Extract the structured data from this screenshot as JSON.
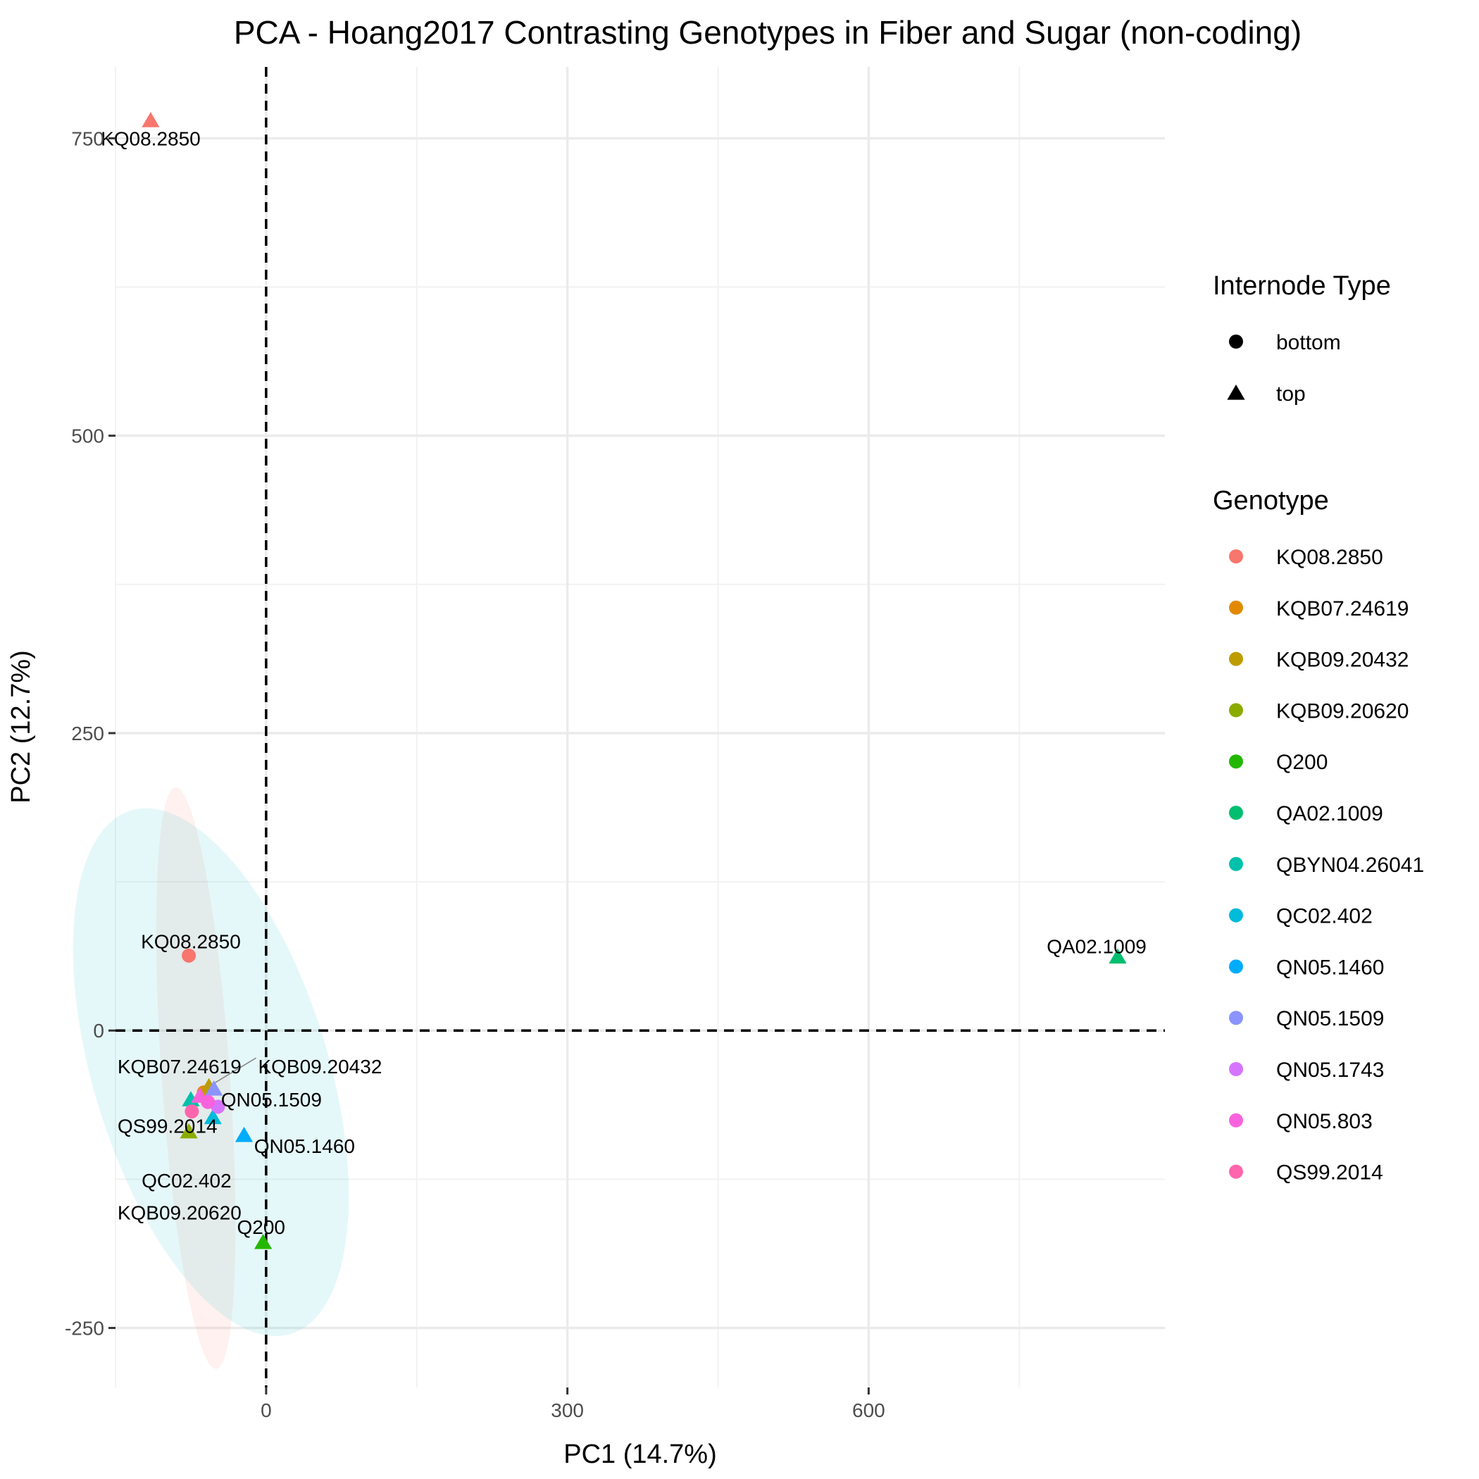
{
  "chart_data": {
    "type": "scatter",
    "title": "PCA - Hoang2017 Contrasting Genotypes in Fiber and Sugar (non-coding)",
    "xlabel": "PC1 (14.7%)",
    "ylabel": "PC2 (12.7%)",
    "xlim": [
      -150,
      895
    ],
    "ylim": [
      -300,
      810
    ],
    "x_ticks": [
      0,
      300,
      600
    ],
    "y_ticks": [
      -250,
      0,
      250,
      500,
      750
    ],
    "x_minor_ticks": [
      -150,
      150,
      450,
      750
    ],
    "y_minor_ticks": [
      -125,
      125,
      375,
      625
    ],
    "reference_lines": {
      "x": 0,
      "y": 0
    },
    "ellipses": [
      {
        "group": "top",
        "center": [
          -70,
          -40
        ],
        "rx": 34,
        "ry": 245,
        "rotation": -4,
        "color": "#F8766D",
        "opacity": 0.1
      },
      {
        "group": "bottom",
        "center": [
          -55,
          -35
        ],
        "rx": 117,
        "ry": 230,
        "rotation": -17,
        "color": "#00BFC4",
        "opacity": 0.1
      }
    ],
    "legend_shape": {
      "title": "Internode Type",
      "entries": [
        {
          "label": "bottom",
          "shape": "circle"
        },
        {
          "label": "top",
          "shape": "triangle"
        }
      ]
    },
    "legend_color": {
      "title": "Genotype",
      "entries": [
        {
          "label": "KQ08.2850",
          "color": "#F8766D"
        },
        {
          "label": "KQB07.24619",
          "color": "#E18A00"
        },
        {
          "label": "KQB09.20432",
          "color": "#BE9C00"
        },
        {
          "label": "KQB09.20620",
          "color": "#8CAB00"
        },
        {
          "label": "Q200",
          "color": "#24B700"
        },
        {
          "label": "QA02.1009",
          "color": "#00BE70"
        },
        {
          "label": "QBYN04.26041",
          "color": "#00C1AB"
        },
        {
          "label": "QC02.402",
          "color": "#00BBDA"
        },
        {
          "label": "QN05.1460",
          "color": "#00ACFC"
        },
        {
          "label": "QN05.1509",
          "color": "#8B93FF"
        },
        {
          "label": "QN05.1743",
          "color": "#D575FE"
        },
        {
          "label": "QN05.803",
          "color": "#F962DD"
        },
        {
          "label": "QS99.2014",
          "color": "#FF65AC"
        }
      ]
    },
    "points": [
      {
        "genotype": "KQ08.2850",
        "type": "top",
        "x": -115,
        "y": 765
      },
      {
        "genotype": "KQ08.2850",
        "type": "bottom",
        "x": -77,
        "y": 63
      },
      {
        "genotype": "QA02.1009",
        "type": "top",
        "x": 848,
        "y": 62
      },
      {
        "genotype": "Q200",
        "type": "top",
        "x": -3,
        "y": -178
      },
      {
        "genotype": "QN05.1460",
        "type": "top",
        "x": -22,
        "y": -88
      },
      {
        "genotype": "KQB09.20620",
        "type": "top",
        "x": -77,
        "y": -85
      },
      {
        "genotype": "QBYN04.26041",
        "type": "top",
        "x": -75,
        "y": -58
      },
      {
        "genotype": "QC02.402",
        "type": "top",
        "x": -53,
        "y": -73
      },
      {
        "genotype": "KQB07.24619",
        "type": "bottom",
        "x": -62,
        "y": -52
      },
      {
        "genotype": "KQB09.20432",
        "type": "top",
        "x": -57,
        "y": -47
      },
      {
        "genotype": "QN05.1509",
        "type": "top",
        "x": -52,
        "y": -49
      },
      {
        "genotype": "QN05.1743",
        "type": "bottom",
        "x": -48,
        "y": -64
      },
      {
        "genotype": "QN05.803",
        "type": "bottom",
        "x": -58,
        "y": -60
      },
      {
        "genotype": "QS99.2014",
        "type": "bottom",
        "x": -74,
        "y": -68
      },
      {
        "genotype": "QN05.803",
        "type": "top",
        "x": -66,
        "y": -55
      }
    ],
    "labels": [
      {
        "text": "KQ08.2850",
        "x": -115,
        "y": 750,
        "anchor": "middle"
      },
      {
        "text": "KQ08.2850",
        "x": -75,
        "y": 75,
        "anchor": "middle"
      },
      {
        "text": "QA02.1009",
        "x": 827,
        "y": 71,
        "anchor": "middle"
      },
      {
        "text": "KQB07.24619",
        "x": -148,
        "y": -30,
        "anchor": "start"
      },
      {
        "text": "KQB09.20432",
        "x": -8,
        "y": -30,
        "anchor": "start"
      },
      {
        "text": "QN05.1509",
        "x": -45,
        "y": -58,
        "anchor": "start"
      },
      {
        "text": "QS99.2014",
        "x": -148,
        "y": -80,
        "anchor": "start"
      },
      {
        "text": "QN05.1460",
        "x": -12,
        "y": -97,
        "anchor": "start"
      },
      {
        "text": "QC02.402",
        "x": -124,
        "y": -126,
        "anchor": "start"
      },
      {
        "text": "KQB09.20620",
        "x": -148,
        "y": -153,
        "anchor": "start"
      },
      {
        "text": "Q200",
        "x": -5,
        "y": -165,
        "anchor": "middle"
      }
    ],
    "leader_lines": [
      {
        "from": [
          -57,
          -47
        ],
        "to": [
          -10,
          -23
        ]
      }
    ]
  }
}
